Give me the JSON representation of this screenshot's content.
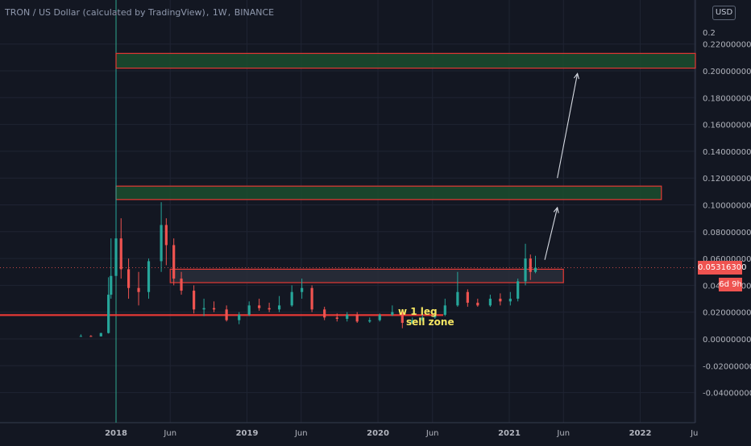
{
  "header": {
    "symbol": "TRON / US Dollar (calculated by TradingView)",
    "interval": "1W",
    "exchange": "BINANCE"
  },
  "currency_button": "USD",
  "last_price_label": "0.05316300",
  "countdown_label": "6d 9h",
  "colors": {
    "background": "#131722",
    "up": "#26a69a",
    "down": "#ef5350",
    "zone_border": "#e53935",
    "zone_fill_green": "#1b4d2e",
    "annotation_text": "#f5e663",
    "arrow": "#d7dbe3",
    "axis_text": "#b2b5be"
  },
  "chart_data": {
    "type": "candlestick",
    "title": "TRON / US Dollar (calculated by TradingView), 1W, BINANCE",
    "ylim": [
      -0.05,
      0.23
    ],
    "y_ticks": [
      0.22,
      0.2,
      0.18,
      0.16,
      0.14,
      0.12,
      0.1,
      0.08,
      0.06,
      0.04,
      0.02,
      0.0,
      -0.02,
      -0.04
    ],
    "y_tick_labels": [
      "0.22000000",
      "0.20000000",
      "0.18000000",
      "0.16000000",
      "0.14000000",
      "0.12000000",
      "0.10000000",
      "0.08000000",
      "0.06000000",
      "0.04000000",
      "0.02000000",
      "0.00000000",
      "-0.02000000",
      "-0.04000000"
    ],
    "y_top_partial_label": "0.2",
    "y_partial_label_040": "0.040",
    "x_ticks": [
      "2018",
      "Jun",
      "2019",
      "Jun",
      "2020",
      "Jun",
      "2021",
      "Jun",
      "2022",
      "Ju"
    ],
    "x_tick_dates": [
      "2018-01-01",
      "2018-06-01",
      "2019-01-01",
      "2019-06-01",
      "2020-01-01",
      "2020-06-01",
      "2021-01-01",
      "2021-06-01",
      "2022-01-01",
      "2022-06-01"
    ],
    "grid": true,
    "last_price": 0.053163,
    "candles": [
      {
        "date": "2017-09-25",
        "o": 0.0021,
        "h": 0.0034,
        "l": 0.0018,
        "c": 0.0022
      },
      {
        "date": "2017-10-23",
        "o": 0.0022,
        "h": 0.0028,
        "l": 0.0015,
        "c": 0.0017
      },
      {
        "date": "2017-11-20",
        "o": 0.0019,
        "h": 0.0046,
        "l": 0.0018,
        "c": 0.0044
      },
      {
        "date": "2017-12-11",
        "o": 0.0044,
        "h": 0.046,
        "l": 0.004,
        "c": 0.033
      },
      {
        "date": "2017-12-18",
        "o": 0.033,
        "h": 0.075,
        "l": 0.03,
        "c": 0.047
      },
      {
        "date": "2018-01-01",
        "o": 0.047,
        "h": 0.2,
        "l": 0.045,
        "c": 0.075
      },
      {
        "date": "2018-01-15",
        "o": 0.075,
        "h": 0.09,
        "l": 0.045,
        "c": 0.052
      },
      {
        "date": "2018-02-05",
        "o": 0.052,
        "h": 0.06,
        "l": 0.03,
        "c": 0.038
      },
      {
        "date": "2018-03-05",
        "o": 0.038,
        "h": 0.05,
        "l": 0.025,
        "c": 0.035
      },
      {
        "date": "2018-04-02",
        "o": 0.035,
        "h": 0.06,
        "l": 0.03,
        "c": 0.058
      },
      {
        "date": "2018-05-07",
        "o": 0.058,
        "h": 0.102,
        "l": 0.05,
        "c": 0.085
      },
      {
        "date": "2018-05-21",
        "o": 0.085,
        "h": 0.09,
        "l": 0.055,
        "c": 0.07
      },
      {
        "date": "2018-06-11",
        "o": 0.07,
        "h": 0.075,
        "l": 0.04,
        "c": 0.045
      },
      {
        "date": "2018-07-02",
        "o": 0.045,
        "h": 0.05,
        "l": 0.033,
        "c": 0.036
      },
      {
        "date": "2018-08-06",
        "o": 0.036,
        "h": 0.04,
        "l": 0.019,
        "c": 0.022
      },
      {
        "date": "2018-09-03",
        "o": 0.022,
        "h": 0.03,
        "l": 0.017,
        "c": 0.023
      },
      {
        "date": "2018-10-01",
        "o": 0.023,
        "h": 0.028,
        "l": 0.02,
        "c": 0.022
      },
      {
        "date": "2018-11-05",
        "o": 0.022,
        "h": 0.025,
        "l": 0.013,
        "c": 0.014
      },
      {
        "date": "2018-12-10",
        "o": 0.014,
        "h": 0.02,
        "l": 0.011,
        "c": 0.018
      },
      {
        "date": "2019-01-07",
        "o": 0.018,
        "h": 0.028,
        "l": 0.017,
        "c": 0.025
      },
      {
        "date": "2019-02-04",
        "o": 0.025,
        "h": 0.03,
        "l": 0.021,
        "c": 0.023
      },
      {
        "date": "2019-03-04",
        "o": 0.023,
        "h": 0.027,
        "l": 0.02,
        "c": 0.022
      },
      {
        "date": "2019-04-01",
        "o": 0.022,
        "h": 0.032,
        "l": 0.02,
        "c": 0.025
      },
      {
        "date": "2019-05-06",
        "o": 0.025,
        "h": 0.04,
        "l": 0.024,
        "c": 0.035
      },
      {
        "date": "2019-06-03",
        "o": 0.035,
        "h": 0.045,
        "l": 0.03,
        "c": 0.038
      },
      {
        "date": "2019-07-01",
        "o": 0.038,
        "h": 0.04,
        "l": 0.02,
        "c": 0.022
      },
      {
        "date": "2019-08-05",
        "o": 0.022,
        "h": 0.024,
        "l": 0.014,
        "c": 0.016
      },
      {
        "date": "2019-09-09",
        "o": 0.016,
        "h": 0.019,
        "l": 0.013,
        "c": 0.015
      },
      {
        "date": "2019-10-07",
        "o": 0.015,
        "h": 0.02,
        "l": 0.013,
        "c": 0.018
      },
      {
        "date": "2019-11-04",
        "o": 0.018,
        "h": 0.02,
        "l": 0.012,
        "c": 0.013
      },
      {
        "date": "2019-12-09",
        "o": 0.013,
        "h": 0.016,
        "l": 0.012,
        "c": 0.014
      },
      {
        "date": "2020-01-06",
        "o": 0.014,
        "h": 0.019,
        "l": 0.013,
        "c": 0.018
      },
      {
        "date": "2020-02-10",
        "o": 0.018,
        "h": 0.025,
        "l": 0.017,
        "c": 0.02
      },
      {
        "date": "2020-03-09",
        "o": 0.02,
        "h": 0.021,
        "l": 0.008,
        "c": 0.012
      },
      {
        "date": "2020-04-06",
        "o": 0.012,
        "h": 0.016,
        "l": 0.011,
        "c": 0.014
      },
      {
        "date": "2020-05-04",
        "o": 0.014,
        "h": 0.018,
        "l": 0.013,
        "c": 0.016
      },
      {
        "date": "2020-06-08",
        "o": 0.016,
        "h": 0.021,
        "l": 0.015,
        "c": 0.018
      },
      {
        "date": "2020-07-06",
        "o": 0.018,
        "h": 0.03,
        "l": 0.017,
        "c": 0.025
      },
      {
        "date": "2020-08-10",
        "o": 0.025,
        "h": 0.05,
        "l": 0.024,
        "c": 0.035
      },
      {
        "date": "2020-09-07",
        "o": 0.035,
        "h": 0.037,
        "l": 0.024,
        "c": 0.027
      },
      {
        "date": "2020-10-05",
        "o": 0.027,
        "h": 0.03,
        "l": 0.024,
        "c": 0.025
      },
      {
        "date": "2020-11-09",
        "o": 0.025,
        "h": 0.033,
        "l": 0.024,
        "c": 0.03
      },
      {
        "date": "2020-12-07",
        "o": 0.03,
        "h": 0.034,
        "l": 0.025,
        "c": 0.028
      },
      {
        "date": "2021-01-04",
        "o": 0.028,
        "h": 0.035,
        "l": 0.025,
        "c": 0.03
      },
      {
        "date": "2021-01-25",
        "o": 0.03,
        "h": 0.045,
        "l": 0.028,
        "c": 0.043
      },
      {
        "date": "2021-02-15",
        "o": 0.043,
        "h": 0.071,
        "l": 0.04,
        "c": 0.06
      },
      {
        "date": "2021-03-01",
        "o": 0.06,
        "h": 0.063,
        "l": 0.044,
        "c": 0.05
      },
      {
        "date": "2021-03-15",
        "o": 0.05,
        "h": 0.062,
        "l": 0.049,
        "c": 0.053163
      }
    ],
    "zones": [
      {
        "fill": "green",
        "y_low": 0.202,
        "y_high": 0.213,
        "x_start": "2018-01-01",
        "x_end": "2022-06-30"
      },
      {
        "fill": "green",
        "y_low": 0.104,
        "y_high": 0.114,
        "x_start": "2018-01-01",
        "x_end": "2022-03-01"
      },
      {
        "fill": "dark",
        "y_low": 0.042,
        "y_high": 0.052,
        "x_start": "2018-06-01",
        "x_end": "2021-06-01"
      }
    ],
    "support_line": {
      "y": 0.0178,
      "x_start": "2017-03-01",
      "x_end": "2020-07-01"
    },
    "arrows": [
      {
        "from": {
          "date": "2021-04-10",
          "y": 0.059
        },
        "to": {
          "date": "2021-05-15",
          "y": 0.098
        }
      },
      {
        "from": {
          "date": "2021-05-15",
          "y": 0.12
        },
        "to": {
          "date": "2021-07-10",
          "y": 0.198
        }
      }
    ],
    "annotations": [
      "w 1 leg",
      "sell zone"
    ]
  }
}
